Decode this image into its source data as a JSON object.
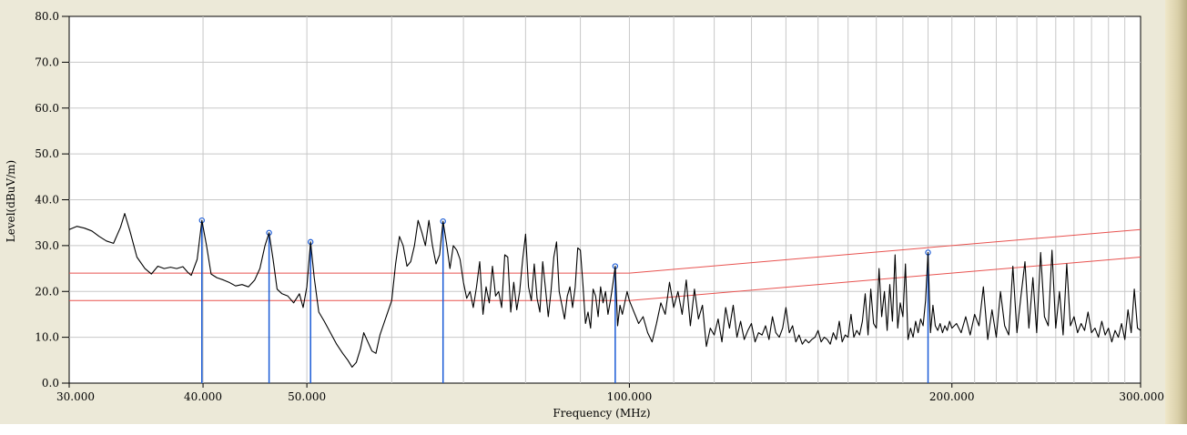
{
  "chart_data": {
    "type": "line",
    "title": "",
    "xlabel": "Frequency (MHz)",
    "ylabel": "Level(dBuV/m)",
    "x_scale": "log",
    "xlim": [
      30,
      300
    ],
    "ylim": [
      0,
      80
    ],
    "grid": true,
    "x_tick_labels": [
      "30.000",
      "40.000",
      "50.000",
      "100.000",
      "200.000",
      "300.000"
    ],
    "x_tick_values": [
      30,
      40,
      50,
      100,
      200,
      300
    ],
    "y_tick_labels": [
      "0.0",
      "10.0",
      "20.0",
      "30.0",
      "40.0",
      "50.0",
      "60.0",
      "70.0",
      "80.0"
    ],
    "y_tick_values": [
      0,
      10,
      20,
      30,
      40,
      50,
      60,
      70,
      80
    ],
    "series": [
      {
        "role": "measured-trace",
        "color": "#000000",
        "points": [
          [
            30.0,
            33.5
          ],
          [
            30.5,
            34.2
          ],
          [
            31.0,
            33.8
          ],
          [
            31.5,
            33.2
          ],
          [
            32.0,
            32.0
          ],
          [
            32.5,
            31.0
          ],
          [
            33.0,
            30.5
          ],
          [
            33.5,
            34.0
          ],
          [
            33.8,
            37.0
          ],
          [
            34.2,
            33.0
          ],
          [
            34.7,
            27.5
          ],
          [
            35.3,
            25.0
          ],
          [
            35.8,
            23.8
          ],
          [
            36.3,
            25.5
          ],
          [
            36.8,
            25.0
          ],
          [
            37.3,
            25.3
          ],
          [
            37.8,
            25.0
          ],
          [
            38.3,
            25.4
          ],
          [
            38.7,
            24.2
          ],
          [
            39.0,
            23.5
          ],
          [
            39.5,
            27.0
          ],
          [
            39.9,
            35.5
          ],
          [
            40.3,
            30.0
          ],
          [
            40.7,
            23.8
          ],
          [
            41.2,
            23.0
          ],
          [
            41.8,
            22.5
          ],
          [
            42.3,
            22.0
          ],
          [
            42.9,
            21.2
          ],
          [
            43.5,
            21.5
          ],
          [
            44.1,
            21.0
          ],
          [
            44.7,
            22.5
          ],
          [
            45.2,
            25.0
          ],
          [
            45.7,
            30.0
          ],
          [
            46.1,
            32.8
          ],
          [
            46.5,
            27.0
          ],
          [
            46.9,
            20.5
          ],
          [
            47.4,
            19.5
          ],
          [
            48.0,
            19.0
          ],
          [
            48.6,
            17.5
          ],
          [
            49.2,
            19.5
          ],
          [
            49.6,
            16.5
          ],
          [
            50.0,
            21.0
          ],
          [
            50.4,
            30.8
          ],
          [
            50.8,
            23.0
          ],
          [
            51.3,
            15.5
          ],
          [
            51.9,
            13.5
          ],
          [
            52.6,
            11.0
          ],
          [
            53.3,
            8.5
          ],
          [
            54.0,
            6.5
          ],
          [
            54.6,
            5.0
          ],
          [
            55.1,
            3.5
          ],
          [
            55.6,
            4.5
          ],
          [
            56.1,
            7.5
          ],
          [
            56.5,
            11.0
          ],
          [
            57.0,
            9.0
          ],
          [
            57.5,
            7.0
          ],
          [
            58.0,
            6.5
          ],
          [
            58.5,
            10.5
          ],
          [
            59.0,
            13.0
          ],
          [
            59.5,
            15.5
          ],
          [
            60.0,
            18.0
          ],
          [
            60.5,
            26.0
          ],
          [
            61.0,
            32.0
          ],
          [
            61.5,
            30.0
          ],
          [
            62.0,
            25.5
          ],
          [
            62.5,
            26.5
          ],
          [
            63.0,
            30.0
          ],
          [
            63.5,
            35.5
          ],
          [
            64.0,
            33.0
          ],
          [
            64.5,
            30.0
          ],
          [
            65.0,
            35.5
          ],
          [
            65.5,
            30.0
          ],
          [
            66.0,
            26.0
          ],
          [
            66.5,
            28.0
          ],
          [
            67.0,
            35.3
          ],
          [
            67.5,
            30.5
          ],
          [
            68.0,
            25.0
          ],
          [
            68.5,
            30.0
          ],
          [
            69.0,
            29.0
          ],
          [
            69.5,
            27.0
          ],
          [
            70.0,
            22.0
          ],
          [
            70.5,
            18.5
          ],
          [
            71.0,
            20.0
          ],
          [
            71.5,
            16.5
          ],
          [
            72.0,
            21.0
          ],
          [
            72.5,
            26.5
          ],
          [
            73.0,
            15.0
          ],
          [
            73.5,
            21.0
          ],
          [
            74.0,
            17.5
          ],
          [
            74.5,
            25.5
          ],
          [
            75.0,
            19.0
          ],
          [
            75.5,
            20.0
          ],
          [
            76.0,
            16.5
          ],
          [
            76.5,
            28.0
          ],
          [
            77.0,
            27.5
          ],
          [
            77.5,
            15.5
          ],
          [
            78.0,
            22.0
          ],
          [
            78.5,
            16.0
          ],
          [
            79.0,
            20.0
          ],
          [
            79.5,
            27.0
          ],
          [
            80.0,
            32.5
          ],
          [
            80.5,
            21.0
          ],
          [
            81.0,
            18.0
          ],
          [
            81.5,
            26.0
          ],
          [
            82.0,
            18.5
          ],
          [
            82.5,
            15.5
          ],
          [
            83.0,
            26.5
          ],
          [
            83.5,
            20.5
          ],
          [
            84.0,
            14.5
          ],
          [
            84.5,
            20.0
          ],
          [
            85.0,
            27.5
          ],
          [
            85.5,
            30.8
          ],
          [
            86.0,
            20.0
          ],
          [
            86.5,
            17.0
          ],
          [
            87.0,
            14.0
          ],
          [
            87.5,
            19.0
          ],
          [
            88.0,
            21.0
          ],
          [
            88.5,
            16.5
          ],
          [
            89.0,
            21.0
          ],
          [
            89.5,
            29.5
          ],
          [
            90.0,
            29.0
          ],
          [
            90.5,
            21.5
          ],
          [
            91.0,
            13.0
          ],
          [
            91.5,
            15.5
          ],
          [
            92.0,
            12.0
          ],
          [
            92.5,
            20.5
          ],
          [
            93.0,
            19.0
          ],
          [
            93.5,
            14.5
          ],
          [
            94.0,
            21.0
          ],
          [
            94.5,
            17.5
          ],
          [
            95.0,
            20.0
          ],
          [
            95.5,
            15.0
          ],
          [
            96.0,
            18.0
          ],
          [
            96.5,
            21.5
          ],
          [
            97.0,
            25.5
          ],
          [
            97.5,
            12.5
          ],
          [
            98.0,
            17.0
          ],
          [
            98.5,
            15.0
          ],
          [
            99.0,
            17.5
          ],
          [
            99.5,
            20.0
          ],
          [
            100.0,
            18.0
          ],
          [
            101.0,
            15.5
          ],
          [
            102.0,
            13.0
          ],
          [
            103.0,
            14.5
          ],
          [
            104.0,
            11.0
          ],
          [
            105.0,
            9.0
          ],
          [
            106.0,
            13.0
          ],
          [
            107.0,
            17.5
          ],
          [
            108.0,
            15.0
          ],
          [
            109.0,
            22.0
          ],
          [
            110.0,
            16.5
          ],
          [
            111.0,
            20.0
          ],
          [
            112.0,
            15.0
          ],
          [
            113.0,
            22.5
          ],
          [
            114.0,
            12.5
          ],
          [
            115.0,
            20.5
          ],
          [
            116.0,
            14.0
          ],
          [
            117.0,
            17.0
          ],
          [
            118.0,
            8.0
          ],
          [
            119.0,
            12.0
          ],
          [
            120.0,
            10.5
          ],
          [
            121.0,
            14.0
          ],
          [
            122.0,
            9.0
          ],
          [
            123.0,
            16.5
          ],
          [
            124.0,
            12.0
          ],
          [
            125.0,
            17.0
          ],
          [
            126.0,
            10.0
          ],
          [
            127.0,
            13.5
          ],
          [
            128.0,
            9.5
          ],
          [
            129.0,
            11.5
          ],
          [
            130.0,
            13.0
          ],
          [
            131.0,
            9.0
          ],
          [
            132.0,
            11.0
          ],
          [
            133.0,
            10.5
          ],
          [
            134.0,
            12.5
          ],
          [
            135.0,
            9.5
          ],
          [
            136.0,
            14.5
          ],
          [
            137.0,
            11.0
          ],
          [
            138.0,
            10.0
          ],
          [
            139.0,
            12.0
          ],
          [
            140.0,
            16.5
          ],
          [
            141.0,
            11.0
          ],
          [
            142.0,
            12.5
          ],
          [
            143.0,
            9.0
          ],
          [
            144.0,
            10.5
          ],
          [
            145.0,
            8.5
          ],
          [
            146.0,
            9.5
          ],
          [
            147.0,
            8.8
          ],
          [
            148.0,
            9.5
          ],
          [
            149.0,
            10.0
          ],
          [
            150.0,
            11.5
          ],
          [
            151.0,
            9.0
          ],
          [
            152.0,
            10.0
          ],
          [
            153.0,
            9.5
          ],
          [
            154.0,
            8.5
          ],
          [
            155.0,
            11.0
          ],
          [
            156.0,
            9.5
          ],
          [
            157.0,
            13.5
          ],
          [
            158.0,
            9.0
          ],
          [
            159.0,
            10.5
          ],
          [
            160.0,
            10.0
          ],
          [
            161.0,
            15.0
          ],
          [
            162.0,
            10.0
          ],
          [
            163.0,
            11.5
          ],
          [
            164.0,
            10.5
          ],
          [
            165.0,
            13.5
          ],
          [
            166.0,
            19.5
          ],
          [
            167.0,
            10.5
          ],
          [
            168.0,
            20.5
          ],
          [
            169.0,
            13.0
          ],
          [
            170.0,
            12.0
          ],
          [
            171.0,
            25.0
          ],
          [
            172.0,
            14.5
          ],
          [
            173.0,
            20.0
          ],
          [
            174.0,
            11.5
          ],
          [
            175.0,
            21.5
          ],
          [
            176.0,
            13.5
          ],
          [
            177.0,
            28.0
          ],
          [
            178.0,
            12.0
          ],
          [
            179.0,
            17.5
          ],
          [
            180.0,
            14.5
          ],
          [
            181.0,
            26.0
          ],
          [
            182.0,
            9.5
          ],
          [
            183.0,
            12.0
          ],
          [
            184.0,
            10.0
          ],
          [
            185.0,
            13.5
          ],
          [
            186.0,
            11.0
          ],
          [
            187.0,
            14.0
          ],
          [
            188.0,
            12.5
          ],
          [
            189.0,
            18.0
          ],
          [
            190.0,
            28.5
          ],
          [
            191.0,
            11.0
          ],
          [
            192.0,
            17.0
          ],
          [
            193.0,
            12.5
          ],
          [
            194.0,
            11.5
          ],
          [
            195.0,
            13.0
          ],
          [
            196.0,
            11.0
          ],
          [
            197.0,
            12.5
          ],
          [
            198.0,
            11.5
          ],
          [
            199.0,
            13.5
          ],
          [
            200.0,
            12.0
          ],
          [
            202.0,
            13.0
          ],
          [
            204.0,
            11.0
          ],
          [
            206.0,
            14.5
          ],
          [
            208.0,
            10.5
          ],
          [
            210.0,
            15.0
          ],
          [
            212.0,
            12.5
          ],
          [
            214.0,
            21.0
          ],
          [
            216.0,
            9.5
          ],
          [
            218.0,
            16.0
          ],
          [
            220.0,
            10.0
          ],
          [
            222.0,
            20.0
          ],
          [
            224.0,
            12.5
          ],
          [
            226.0,
            10.5
          ],
          [
            228.0,
            25.5
          ],
          [
            230.0,
            11.0
          ],
          [
            232.0,
            19.0
          ],
          [
            234.0,
            26.5
          ],
          [
            236.0,
            12.0
          ],
          [
            238.0,
            23.0
          ],
          [
            240.0,
            11.0
          ],
          [
            242.0,
            28.5
          ],
          [
            244.0,
            14.5
          ],
          [
            246.0,
            12.5
          ],
          [
            248.0,
            29.0
          ],
          [
            250.0,
            12.0
          ],
          [
            252.0,
            20.0
          ],
          [
            254.0,
            10.5
          ],
          [
            256.0,
            26.0
          ],
          [
            258.0,
            12.5
          ],
          [
            260.0,
            14.5
          ],
          [
            262.0,
            11.0
          ],
          [
            264.0,
            13.0
          ],
          [
            266.0,
            11.5
          ],
          [
            268.0,
            15.5
          ],
          [
            270.0,
            11.0
          ],
          [
            272.0,
            12.0
          ],
          [
            274.0,
            10.0
          ],
          [
            276.0,
            13.5
          ],
          [
            278.0,
            10.5
          ],
          [
            280.0,
            12.0
          ],
          [
            282.0,
            9.0
          ],
          [
            284.0,
            11.5
          ],
          [
            286.0,
            10.0
          ],
          [
            288.0,
            13.0
          ],
          [
            290.0,
            9.5
          ],
          [
            292.0,
            16.0
          ],
          [
            294.0,
            11.0
          ],
          [
            296.0,
            20.5
          ],
          [
            298.0,
            12.0
          ],
          [
            300.0,
            11.5
          ]
        ]
      },
      {
        "role": "limit-line-upper",
        "color": "#e8524f",
        "points": [
          [
            30,
            24.0
          ],
          [
            100,
            24.0
          ],
          [
            300,
            33.5
          ]
        ]
      },
      {
        "role": "limit-line-lower",
        "color": "#e8524f",
        "points": [
          [
            30,
            18.0
          ],
          [
            100,
            18.0
          ],
          [
            300,
            27.5
          ]
        ]
      }
    ],
    "markers": [
      {
        "x": 39.9,
        "y": 35.5
      },
      {
        "x": 46.1,
        "y": 32.8
      },
      {
        "x": 50.4,
        "y": 30.8
      },
      {
        "x": 67.0,
        "y": 35.3
      },
      {
        "x": 97.0,
        "y": 25.5
      },
      {
        "x": 190.0,
        "y": 28.5
      }
    ],
    "marker_color": "#1a5bd6"
  }
}
